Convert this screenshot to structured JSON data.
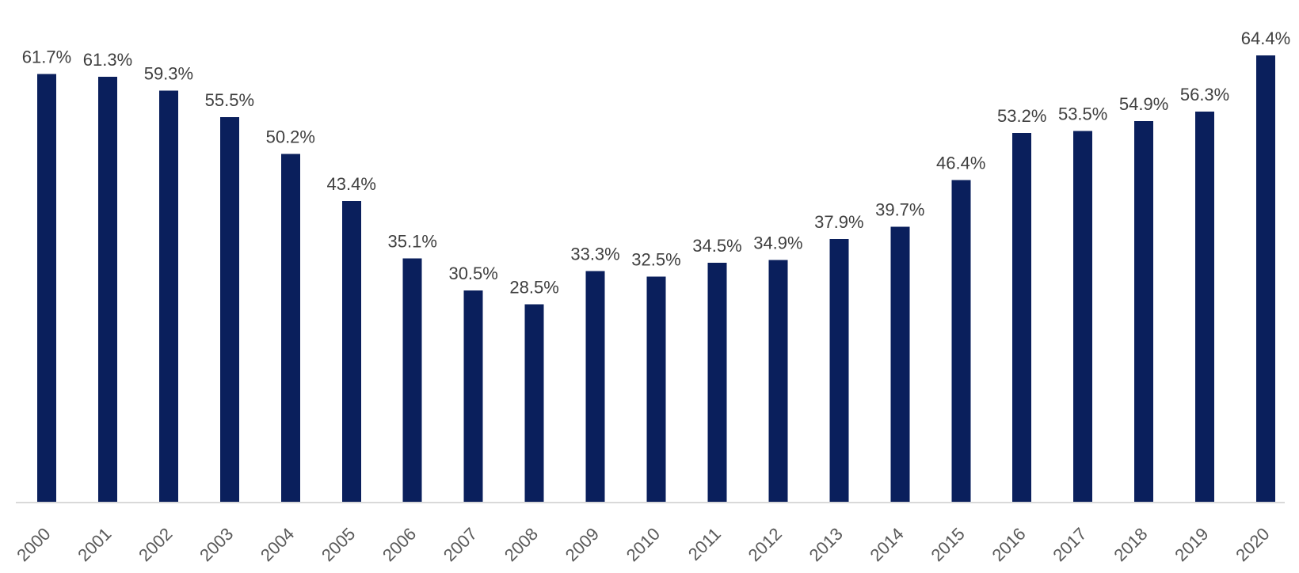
{
  "chart_data": {
    "type": "bar",
    "categories": [
      "2000",
      "2001",
      "2002",
      "2003",
      "2004",
      "2005",
      "2006",
      "2007",
      "2008",
      "2009",
      "2010",
      "2011",
      "2012",
      "2013",
      "2014",
      "2015",
      "2016",
      "2017",
      "2018",
      "2019",
      "2020"
    ],
    "values": [
      61.7,
      61.3,
      59.3,
      55.5,
      50.2,
      43.4,
      35.1,
      30.5,
      28.5,
      33.3,
      32.5,
      34.5,
      34.9,
      37.9,
      39.7,
      46.4,
      53.2,
      53.5,
      54.9,
      56.3,
      64.4
    ],
    "data_labels": [
      "61.7%",
      "61.3%",
      "59.3%",
      "55.5%",
      "50.2%",
      "43.4%",
      "35.1%",
      "30.5%",
      "28.5%",
      "33.3%",
      "32.5%",
      "34.5%",
      "34.9%",
      "37.9%",
      "39.7%",
      "46.4%",
      "53.2%",
      "53.5%",
      "54.9%",
      "56.3%",
      "64.4%"
    ],
    "title": "",
    "xlabel": "",
    "ylabel": "",
    "ylim": [
      0,
      64.4
    ],
    "grid": false,
    "legend": "none",
    "colors": {
      "bar": "#0a1f5c",
      "axis": "#d9d9d9",
      "data_label": "#404040",
      "tick_label": "#595959"
    }
  }
}
